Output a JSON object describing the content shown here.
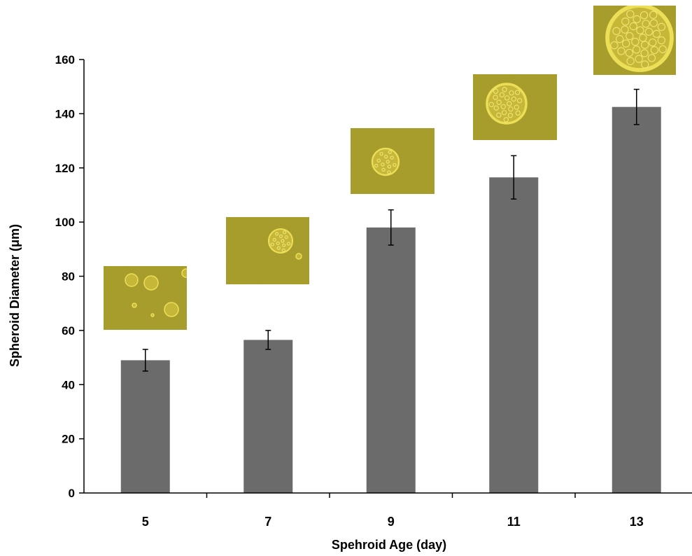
{
  "chart_data": {
    "type": "bar",
    "categories": [
      "5",
      "7",
      "9",
      "11",
      "13"
    ],
    "values": [
      49,
      56.5,
      98,
      116.5,
      142.5
    ],
    "error": [
      4,
      3.5,
      6.5,
      8,
      6.5
    ],
    "xlabel": "Spehroid Age (day)",
    "ylabel": "Spheroid Diameter (μm)",
    "ylim": [
      0,
      160
    ],
    "yticks": [
      0,
      20,
      40,
      60,
      80,
      100,
      120,
      140,
      160
    ],
    "grid": false,
    "legend": "none",
    "colors": {
      "bar": "#6b6b6b",
      "micrograph_bg": "#a89d28",
      "cell": "#f0e25a"
    }
  }
}
